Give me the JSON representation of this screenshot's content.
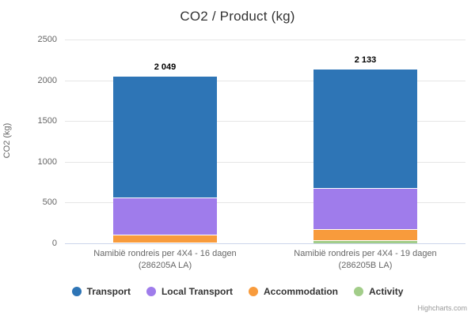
{
  "chart": {
    "title": "CO2 / Product (kg)",
    "y_axis_title": "CO2 (kg)",
    "credits": "Highcharts.com"
  },
  "chart_data": {
    "type": "bar",
    "stacked": true,
    "title": "CO2 / Product (kg)",
    "xlabel": "",
    "ylabel": "CO2 (kg)",
    "ylim": [
      0,
      2500
    ],
    "yticks": [
      0,
      500,
      1000,
      1500,
      2000,
      2500
    ],
    "grid": true,
    "legend_position": "bottom",
    "categories": [
      "Namibië rondreis per 4X4 - 16 dagen (286205A LA)",
      "Namibië rondreis per 4X4 - 19 dagen (286205B LA)"
    ],
    "category_label_lines": [
      [
        "Namibië rondreis per 4X4 - 16 dagen",
        "(286205A LA)"
      ],
      [
        "Namibië rondreis per 4X4 - 19 dagen",
        "(286205B LA)"
      ]
    ],
    "series": [
      {
        "name": "Transport",
        "color": "#2e75b6",
        "values": [
          1491,
          1450
        ]
      },
      {
        "name": "Local Transport",
        "color": "#9f7ceb",
        "values": [
          455,
          513
        ]
      },
      {
        "name": "Accommodation",
        "color": "#f89b3c",
        "values": [
          93,
          136
        ]
      },
      {
        "name": "Activity",
        "color": "#a2cd89",
        "values": [
          10,
          34
        ]
      }
    ],
    "totals": [
      2049,
      2133
    ],
    "total_labels": [
      "2 049",
      "2 133"
    ],
    "colors": {
      "gridline": "#e6e6e6",
      "x_axis_line": "#ccd6eb",
      "tick_label": "#666666",
      "title": "#333333"
    }
  }
}
